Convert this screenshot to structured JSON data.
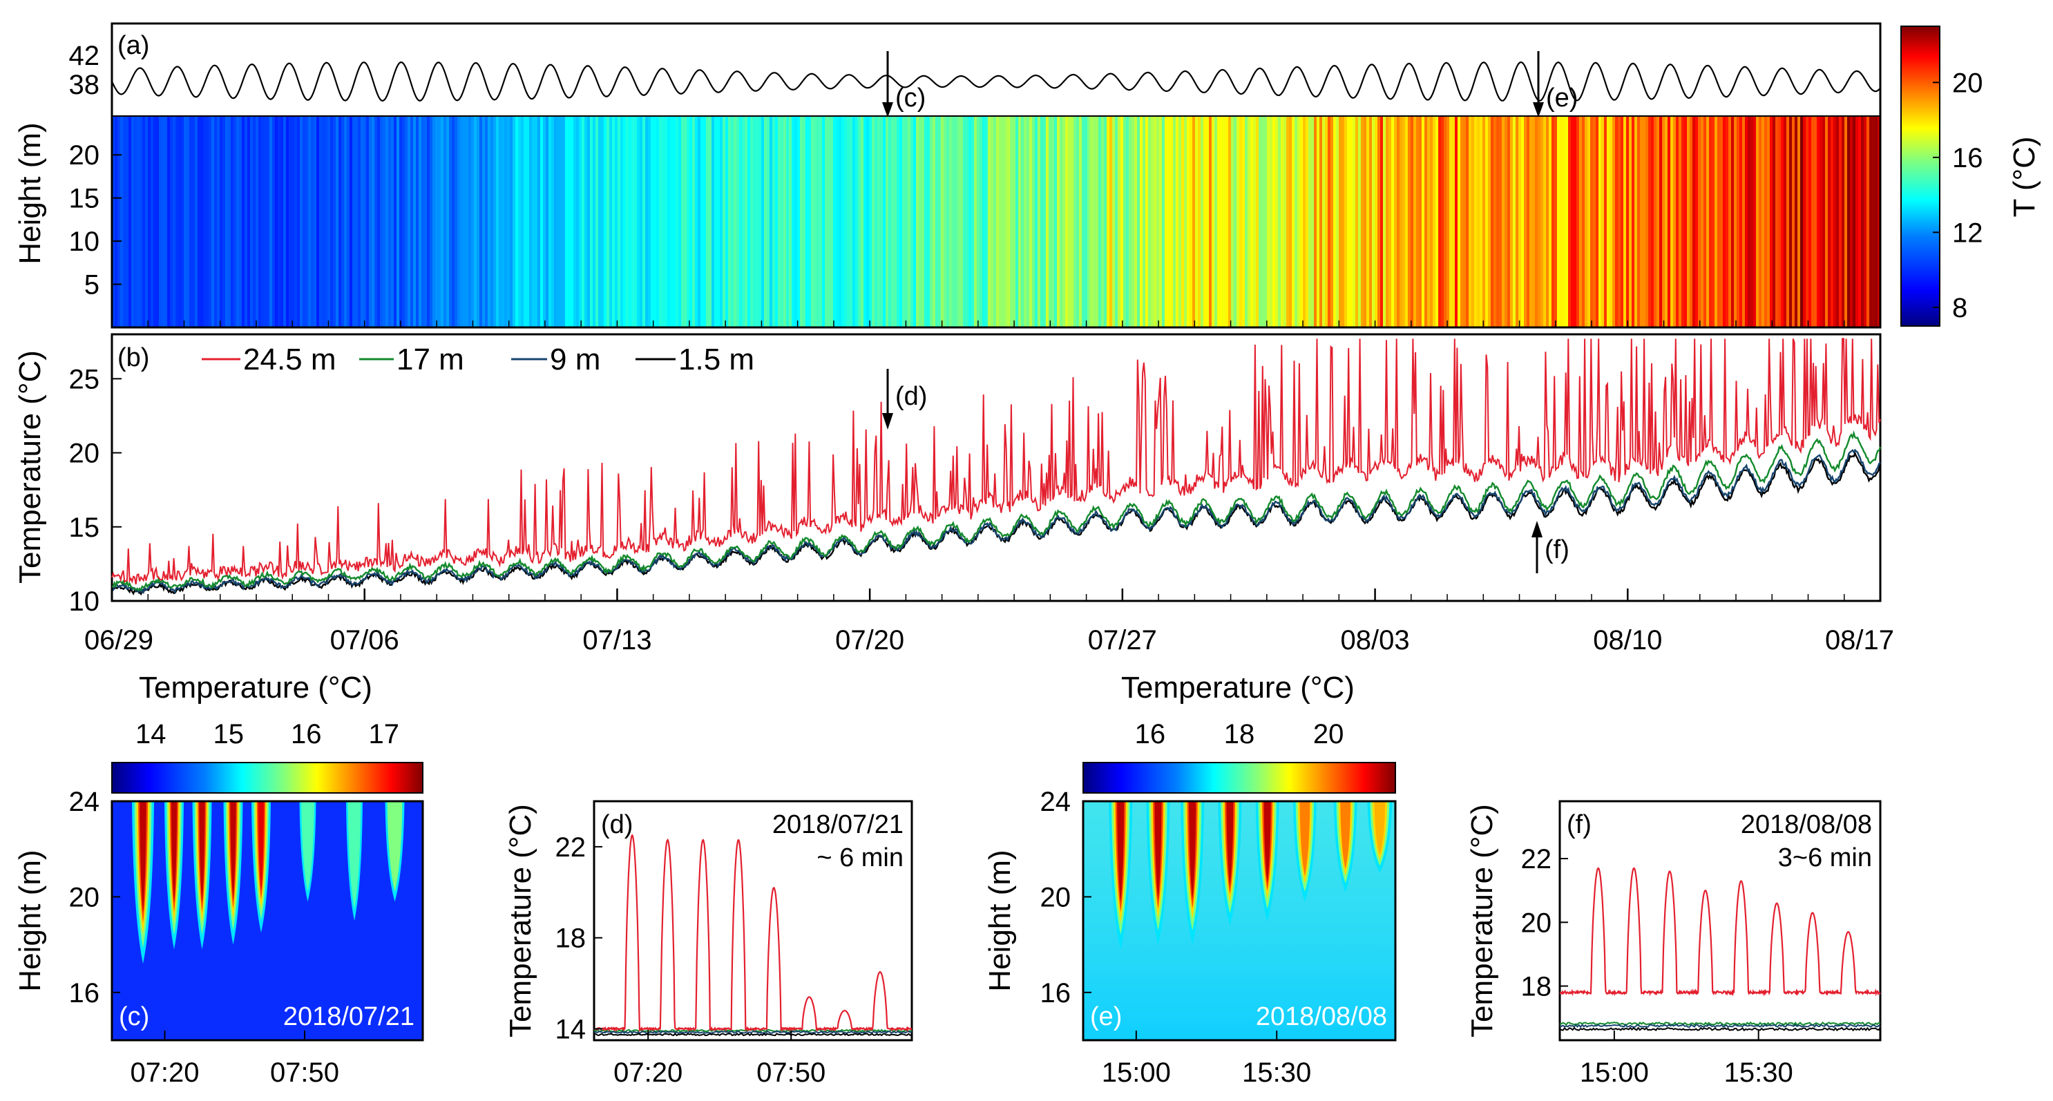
{
  "colors": {
    "series_24_5": "#e3202f",
    "series_17": "#138a2c",
    "series_9": "#17456f",
    "series_1_5": "#000000",
    "jet": [
      "#00007f",
      "#0000ff",
      "#007fff",
      "#00ffff",
      "#7fff7f",
      "#ffff00",
      "#ff7f00",
      "#ff0000",
      "#7f0000"
    ]
  },
  "chart_data": [
    {
      "id": "a",
      "type": "heatmap",
      "panel_label": "(a)",
      "ylabel": "Height (m)",
      "upper_yticks": [
        "42",
        "38"
      ],
      "yticks": [
        "20",
        "15",
        "10",
        "5"
      ],
      "ylim": [
        0,
        24.5
      ],
      "colorbar": {
        "label": "T (°C)",
        "ticks": [
          "20",
          "16",
          "12",
          "8"
        ],
        "range": [
          7,
          23
        ]
      },
      "temperature_trend": {
        "dates": [
          "06/29",
          "07/06",
          "07/13",
          "07/20",
          "07/27",
          "08/03",
          "08/10",
          "08/17"
        ],
        "mean_T": [
          10.5,
          10.8,
          13,
          13.8,
          15.5,
          17.5,
          19,
          21.5
        ]
      },
      "annotations": [
        "(c)",
        "(e)"
      ]
    },
    {
      "id": "b",
      "type": "line",
      "panel_label": "(b)",
      "ylabel": "Temperature (°C)",
      "xlabel": "",
      "ylim": [
        10,
        28
      ],
      "yticks": [
        "25",
        "20",
        "15",
        "10"
      ],
      "categories": [
        "06/29",
        "07/06",
        "07/13",
        "07/20",
        "07/27",
        "08/03",
        "08/10",
        "08/17"
      ],
      "series": [
        {
          "name": "24.5 m",
          "values": [
            11.5,
            12.5,
            13.5,
            15.5,
            17.5,
            19,
            19,
            22
          ]
        },
        {
          "name": "17 m",
          "values": [
            11,
            11.8,
            12.5,
            14,
            15.8,
            16.5,
            17.5,
            20.5
          ]
        },
        {
          "name": "9 m",
          "values": [
            10.8,
            11.5,
            12.3,
            13.8,
            15.5,
            16.2,
            17,
            19.5
          ]
        },
        {
          "name": "1.5 m",
          "values": [
            10.7,
            11.4,
            12.2,
            13.7,
            15.4,
            16.1,
            16.8,
            19.2
          ]
        }
      ],
      "annotations": [
        "(d)",
        "(f)"
      ]
    },
    {
      "id": "c",
      "type": "heatmap",
      "panel_label": "(c)",
      "date": "2018/07/21",
      "colorbar_title": "Temperature (°C)",
      "colorbar_ticks": [
        "14",
        "15",
        "16",
        "17"
      ],
      "colorbar_range": [
        13.5,
        17.5
      ],
      "ylabel": "Height (m)",
      "yticks": [
        "24",
        "20",
        "16"
      ],
      "ylim": [
        14,
        24
      ],
      "xticks": [
        "07:20",
        "07:50"
      ]
    },
    {
      "id": "d",
      "type": "line",
      "panel_label": "(d)",
      "date": "2018/07/21",
      "period": "~ 6 min",
      "ylabel": "Temperature (°C)",
      "yticks": [
        "22",
        "18",
        "14"
      ],
      "ylim": [
        13.5,
        24
      ],
      "xticks": [
        "07:20",
        "07:50"
      ],
      "series": [
        {
          "name": "24.5 m",
          "peaks": [
            22.5,
            22.3,
            22.3,
            22.3,
            20.2,
            15.4,
            14.8,
            16.5
          ],
          "baseline": 14
        },
        {
          "name": "1.5 m",
          "baseline": 13.8
        }
      ]
    },
    {
      "id": "e",
      "type": "heatmap",
      "panel_label": "(e)",
      "date": "2018/08/08",
      "colorbar_title": "Temperature (°C)",
      "colorbar_ticks": [
        "16",
        "18",
        "20"
      ],
      "colorbar_range": [
        14.5,
        21.5
      ],
      "ylabel": "Height (m)",
      "yticks": [
        "24",
        "20",
        "16"
      ],
      "ylim": [
        14,
        24
      ],
      "xticks": [
        "15:00",
        "15:30"
      ]
    },
    {
      "id": "f",
      "type": "line",
      "panel_label": "(f)",
      "date": "2018/08/08",
      "period": "3~6 min",
      "ylabel": "Temperature (°C)",
      "yticks": [
        "22",
        "20",
        "18"
      ],
      "ylim": [
        16.3,
        23.8
      ],
      "xticks": [
        "15:00",
        "15:30"
      ],
      "series": [
        {
          "name": "24.5 m",
          "peaks": [
            21.7,
            21.7,
            21.6,
            21,
            21.3,
            20.6,
            20.3,
            19.7
          ],
          "baseline": 17.8
        },
        {
          "name": "1.5 m",
          "baseline": 16.7
        }
      ]
    }
  ]
}
